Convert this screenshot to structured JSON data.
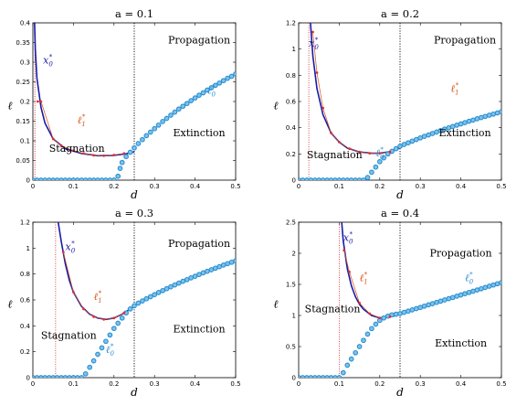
{
  "chart_data": [
    {
      "type": "line",
      "title": "a = 0.1",
      "xlabel": "d",
      "ylabel": "ℓ",
      "xlim": [
        0,
        0.5
      ],
      "ylim": [
        0,
        0.4
      ],
      "xticks": [
        "0",
        "0.1",
        "0.2",
        "0.3",
        "0.4",
        "0.5"
      ],
      "yticks": [
        "0",
        "0.05",
        "0.1",
        "0.15",
        "0.2",
        "0.25",
        "0.3",
        "0.35",
        "0.4"
      ],
      "ytick_values": [
        0,
        0.05,
        0.1,
        0.15,
        0.2,
        0.25,
        0.3,
        0.35,
        0.4
      ],
      "vlines": {
        "red_dotted": 0.005,
        "black_dotted": 0.25
      },
      "regions": [
        "Propagation",
        "Stagnation",
        "Extinction"
      ],
      "labels": {
        "x0": "x0*",
        "l1": "ℓ1*",
        "l0": "ℓ0*"
      },
      "series": [
        {
          "name": "x0*",
          "color": "#1a1aa8",
          "x": [
            0.0035,
            0.006,
            0.01,
            0.02,
            0.03,
            0.05,
            0.08,
            0.12,
            0.16,
            0.2,
            0.23,
            0.25
          ],
          "y": [
            0.42,
            0.33,
            0.26,
            0.185,
            0.145,
            0.105,
            0.08,
            0.068,
            0.062,
            0.063,
            0.067,
            0.072
          ]
        },
        {
          "name": "ℓ1*",
          "color": "#d9541a",
          "x": [
            0.012,
            0.02,
            0.05,
            0.07,
            0.1,
            0.125,
            0.15,
            0.175,
            0.2,
            0.225
          ],
          "y": [
            0.2,
            0.2,
            0.105,
            0.088,
            0.075,
            0.068,
            0.063,
            0.062,
            0.064,
            0.068
          ]
        },
        {
          "name": "ℓ0*",
          "color": "#2a8fd0",
          "x": [
            0.0,
            0.01,
            0.02,
            0.03,
            0.04,
            0.05,
            0.06,
            0.07,
            0.08,
            0.09,
            0.1,
            0.11,
            0.12,
            0.13,
            0.14,
            0.15,
            0.16,
            0.17,
            0.18,
            0.19,
            0.2,
            0.21,
            0.215,
            0.22,
            0.23,
            0.24,
            0.25,
            0.26,
            0.27,
            0.28,
            0.29,
            0.3,
            0.31,
            0.32,
            0.33,
            0.34,
            0.35,
            0.36,
            0.37,
            0.38,
            0.39,
            0.4,
            0.41,
            0.42,
            0.43,
            0.44,
            0.45,
            0.46,
            0.47,
            0.48,
            0.49,
            0.5
          ],
          "y": [
            0,
            0,
            0,
            0,
            0,
            0,
            0,
            0,
            0,
            0,
            0,
            0,
            0,
            0,
            0,
            0,
            0,
            0,
            0,
            0,
            0,
            0.01,
            0.03,
            0.045,
            0.06,
            0.071,
            0.082,
            0.093,
            0.103,
            0.113,
            0.122,
            0.131,
            0.14,
            0.149,
            0.157,
            0.165,
            0.173,
            0.181,
            0.188,
            0.195,
            0.202,
            0.209,
            0.216,
            0.222,
            0.229,
            0.235,
            0.241,
            0.247,
            0.253,
            0.259,
            0.264,
            0.27
          ]
        }
      ]
    },
    {
      "type": "line",
      "title": "a = 0.2",
      "xlabel": "d",
      "ylabel": "ℓ",
      "xlim": [
        0,
        0.5
      ],
      "ylim": [
        0,
        1.2
      ],
      "xticks": [
        "0",
        "0.1",
        "0.2",
        "0.3",
        "0.4",
        "0.5"
      ],
      "yticks": [
        "0",
        "0.2",
        "0.4",
        "0.6",
        "0.8",
        "1",
        "1.2"
      ],
      "ytick_values": [
        0,
        0.2,
        0.4,
        0.6,
        0.8,
        1.0,
        1.2
      ],
      "vlines": {
        "red_dotted": 0.025,
        "black_dotted": 0.25
      },
      "regions": [
        "Propagation",
        "Stagnation",
        "Extinction"
      ],
      "labels": {
        "x0": "x0*",
        "l1": "ℓ1*",
        "l0": "ℓ0*"
      },
      "series": [
        {
          "name": "x0*",
          "color": "#1a1aa8",
          "x": [
            0.028,
            0.035,
            0.045,
            0.06,
            0.08,
            0.1,
            0.12,
            0.15,
            0.18,
            0.2,
            0.23,
            0.25
          ],
          "y": [
            1.25,
            0.95,
            0.7,
            0.5,
            0.36,
            0.29,
            0.245,
            0.215,
            0.205,
            0.205,
            0.22,
            0.245
          ]
        },
        {
          "name": "ℓ1*",
          "color": "#d9541a",
          "x": [
            0.035,
            0.045,
            0.06,
            0.08,
            0.1,
            0.125,
            0.15,
            0.175,
            0.2,
            0.225
          ],
          "y": [
            1.13,
            0.82,
            0.55,
            0.36,
            0.29,
            0.24,
            0.215,
            0.205,
            0.205,
            0.215
          ]
        },
        {
          "name": "ℓ0*",
          "color": "#2a8fd0",
          "x": [
            0.0,
            0.01,
            0.02,
            0.03,
            0.04,
            0.05,
            0.06,
            0.07,
            0.08,
            0.09,
            0.1,
            0.11,
            0.12,
            0.13,
            0.14,
            0.15,
            0.16,
            0.17,
            0.18,
            0.19,
            0.2,
            0.21,
            0.22,
            0.23,
            0.24,
            0.25,
            0.26,
            0.27,
            0.28,
            0.29,
            0.3,
            0.31,
            0.32,
            0.33,
            0.34,
            0.35,
            0.36,
            0.37,
            0.38,
            0.39,
            0.4,
            0.41,
            0.42,
            0.43,
            0.44,
            0.45,
            0.46,
            0.47,
            0.48,
            0.49,
            0.5
          ],
          "y": [
            0,
            0,
            0,
            0,
            0,
            0,
            0,
            0,
            0,
            0,
            0,
            0,
            0,
            0,
            0,
            0,
            0,
            0.02,
            0.06,
            0.1,
            0.14,
            0.17,
            0.2,
            0.22,
            0.24,
            0.258,
            0.272,
            0.285,
            0.298,
            0.31,
            0.322,
            0.334,
            0.345,
            0.356,
            0.367,
            0.378,
            0.389,
            0.399,
            0.409,
            0.419,
            0.429,
            0.439,
            0.449,
            0.458,
            0.468,
            0.477,
            0.486,
            0.495,
            0.504,
            0.513,
            0.522
          ]
        }
      ]
    },
    {
      "type": "line",
      "title": "a = 0.3",
      "xlabel": "d",
      "ylabel": "ℓ",
      "xlim": [
        0,
        0.5
      ],
      "ylim": [
        0,
        1.2
      ],
      "xticks": [
        "0",
        "0.1",
        "0.2",
        "0.3",
        "0.4",
        "0.5"
      ],
      "yticks": [
        "0",
        "0.2",
        "0.4",
        "0.6",
        "0.8",
        "1",
        "1.2"
      ],
      "ytick_values": [
        0,
        0.2,
        0.4,
        0.6,
        0.8,
        1.0,
        1.2
      ],
      "vlines": {
        "red_dotted": 0.056,
        "black_dotted": 0.25
      },
      "regions": [
        "Propagation",
        "Stagnation",
        "Extinction"
      ],
      "labels": {
        "x0": "x0*",
        "l1": "ℓ1*",
        "l0": "ℓ0*"
      },
      "series": [
        {
          "name": "x0*",
          "color": "#1a1aa8",
          "x": [
            0.06,
            0.07,
            0.08,
            0.09,
            0.1,
            0.12,
            0.14,
            0.16,
            0.18,
            0.2,
            0.22,
            0.24,
            0.25
          ],
          "y": [
            1.25,
            1.05,
            0.88,
            0.75,
            0.66,
            0.55,
            0.49,
            0.46,
            0.45,
            0.46,
            0.49,
            0.53,
            0.55
          ]
        },
        {
          "name": "ℓ1*",
          "color": "#d9541a",
          "x": [
            0.075,
            0.1,
            0.125,
            0.15,
            0.175,
            0.2,
            0.225
          ],
          "y": [
            0.97,
            0.66,
            0.53,
            0.47,
            0.45,
            0.46,
            0.5
          ]
        },
        {
          "name": "ℓ0*",
          "color": "#2a8fd0",
          "x": [
            0.0,
            0.01,
            0.02,
            0.03,
            0.04,
            0.05,
            0.06,
            0.07,
            0.08,
            0.09,
            0.1,
            0.11,
            0.12,
            0.13,
            0.14,
            0.15,
            0.16,
            0.17,
            0.18,
            0.19,
            0.2,
            0.21,
            0.22,
            0.23,
            0.24,
            0.25,
            0.26,
            0.27,
            0.28,
            0.29,
            0.3,
            0.31,
            0.32,
            0.33,
            0.34,
            0.35,
            0.36,
            0.37,
            0.38,
            0.39,
            0.4,
            0.41,
            0.42,
            0.43,
            0.44,
            0.45,
            0.46,
            0.47,
            0.48,
            0.49,
            0.5
          ],
          "y": [
            0,
            0,
            0,
            0,
            0,
            0,
            0,
            0,
            0,
            0,
            0,
            0,
            0,
            0.03,
            0.08,
            0.13,
            0.18,
            0.23,
            0.28,
            0.33,
            0.38,
            0.42,
            0.46,
            0.5,
            0.53,
            0.555,
            0.575,
            0.592,
            0.609,
            0.625,
            0.641,
            0.657,
            0.672,
            0.687,
            0.702,
            0.716,
            0.73,
            0.744,
            0.757,
            0.77,
            0.783,
            0.796,
            0.809,
            0.821,
            0.833,
            0.845,
            0.857,
            0.869,
            0.88,
            0.891,
            0.902
          ]
        }
      ]
    },
    {
      "type": "line",
      "title": "a = 0.4",
      "xlabel": "d",
      "ylabel": "ℓ",
      "xlim": [
        0,
        0.5
      ],
      "ylim": [
        0,
        2.5
      ],
      "xticks": [
        "0",
        "0.1",
        "0.2",
        "0.3",
        "0.4",
        "0.5"
      ],
      "yticks": [
        "0",
        "0.5",
        "1",
        "1.5",
        "2",
        "2.5"
      ],
      "ytick_values": [
        0,
        0.5,
        1.0,
        1.5,
        2.0,
        2.5
      ],
      "vlines": {
        "red_dotted": 0.1,
        "black_dotted": 0.25
      },
      "regions": [
        "Propagation",
        "Stagnation",
        "Extinction"
      ],
      "labels": {
        "x0": "x0*",
        "l1": "ℓ1*",
        "l0": "ℓ0*"
      },
      "series": [
        {
          "name": "x0*",
          "color": "#1a1aa8",
          "x": [
            0.105,
            0.11,
            0.12,
            0.13,
            0.14,
            0.15,
            0.16,
            0.18,
            0.2,
            0.22,
            0.24,
            0.25
          ],
          "y": [
            2.6,
            2.2,
            1.75,
            1.48,
            1.3,
            1.18,
            1.1,
            1.0,
            0.96,
            0.97,
            1.0,
            1.03
          ]
        },
        {
          "name": "ℓ1*",
          "color": "#d9541a",
          "x": [
            0.112,
            0.125,
            0.15,
            0.175,
            0.2,
            0.225
          ],
          "y": [
            2.05,
            1.7,
            1.2,
            1.03,
            0.96,
            0.98
          ]
        },
        {
          "name": "ℓ0*",
          "color": "#2a8fd0",
          "x": [
            0.0,
            0.01,
            0.02,
            0.03,
            0.04,
            0.05,
            0.06,
            0.07,
            0.08,
            0.09,
            0.1,
            0.11,
            0.12,
            0.13,
            0.14,
            0.15,
            0.16,
            0.17,
            0.18,
            0.19,
            0.2,
            0.21,
            0.22,
            0.23,
            0.24,
            0.25,
            0.26,
            0.27,
            0.28,
            0.29,
            0.3,
            0.31,
            0.32,
            0.33,
            0.34,
            0.35,
            0.36,
            0.37,
            0.38,
            0.39,
            0.4,
            0.41,
            0.42,
            0.43,
            0.44,
            0.45,
            0.46,
            0.47,
            0.48,
            0.49,
            0.5
          ],
          "y": [
            0,
            0,
            0,
            0,
            0,
            0,
            0,
            0,
            0,
            0,
            0,
            0.08,
            0.2,
            0.3,
            0.4,
            0.5,
            0.6,
            0.7,
            0.79,
            0.86,
            0.92,
            0.96,
            0.99,
            1.01,
            1.02,
            1.03,
            1.05,
            1.07,
            1.09,
            1.11,
            1.13,
            1.15,
            1.17,
            1.19,
            1.21,
            1.23,
            1.25,
            1.27,
            1.29,
            1.31,
            1.33,
            1.35,
            1.37,
            1.39,
            1.41,
            1.43,
            1.45,
            1.47,
            1.49,
            1.51,
            1.53
          ]
        }
      ]
    }
  ]
}
